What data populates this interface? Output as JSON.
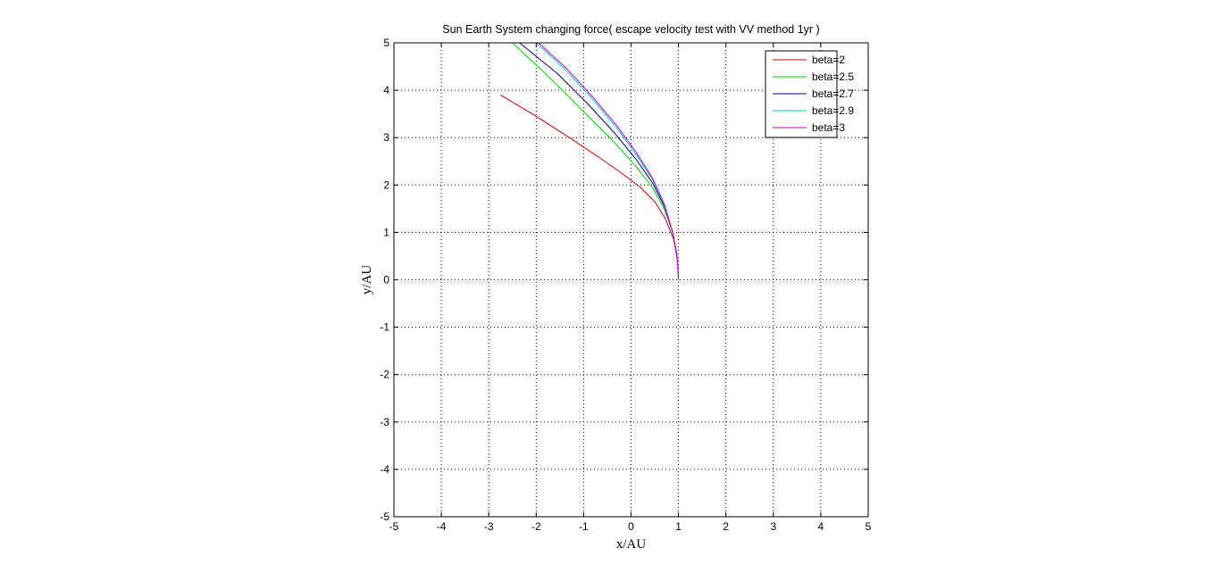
{
  "chart_data": {
    "type": "line",
    "title": "Sun Earth System changing force( escape velocity test with VV method 1yr )",
    "xlabel": "x/AU",
    "ylabel": "y/AU",
    "xlim": [
      -5,
      5
    ],
    "ylim": [
      -5,
      5
    ],
    "xticks": [
      -5,
      -4,
      -3,
      -2,
      -1,
      0,
      1,
      2,
      3,
      4,
      5
    ],
    "yticks": [
      -5,
      -4,
      -3,
      -2,
      -1,
      0,
      1,
      2,
      3,
      4,
      5
    ],
    "grid": true,
    "legend_position": "top-right",
    "series": [
      {
        "name": "beta=2",
        "color": "#cc0000",
        "x": [
          1.0,
          0.98,
          0.9,
          0.72,
          0.5,
          0.2,
          -0.2,
          -0.7,
          -1.3,
          -2.0,
          -2.75
        ],
        "y": [
          0.0,
          0.4,
          0.85,
          1.3,
          1.65,
          1.95,
          2.25,
          2.6,
          3.0,
          3.45,
          3.9
        ]
      },
      {
        "name": "beta=2.5",
        "color": "#00cc00",
        "x": [
          1.0,
          0.97,
          0.88,
          0.7,
          0.45,
          0.1,
          -0.4,
          -1.0,
          -1.7,
          -2.5
        ],
        "y": [
          0.0,
          0.5,
          1.0,
          1.5,
          1.95,
          2.4,
          2.95,
          3.55,
          4.25,
          5.0
        ]
      },
      {
        "name": "beta=2.7",
        "color": "#000080",
        "x": [
          1.0,
          0.97,
          0.88,
          0.7,
          0.45,
          0.1,
          -0.35,
          -0.9,
          -1.55,
          -2.35
        ],
        "y": [
          0.0,
          0.5,
          1.0,
          1.55,
          2.05,
          2.55,
          3.1,
          3.7,
          4.35,
          5.0
        ]
      },
      {
        "name": "beta=2.9",
        "color": "#00cccc",
        "x": [
          1.0,
          0.97,
          0.88,
          0.7,
          0.45,
          0.1,
          -0.3,
          -0.8,
          -1.4,
          -2.0
        ],
        "y": [
          0.0,
          0.5,
          1.0,
          1.58,
          2.12,
          2.65,
          3.2,
          3.8,
          4.45,
          5.0
        ]
      },
      {
        "name": "beta=3",
        "color": "#cc00cc",
        "x": [
          1.0,
          0.97,
          0.88,
          0.7,
          0.45,
          0.1,
          -0.3,
          -0.8,
          -1.35,
          -1.95
        ],
        "y": [
          0.0,
          0.5,
          1.0,
          1.6,
          2.15,
          2.7,
          3.25,
          3.85,
          4.45,
          5.0
        ]
      }
    ]
  }
}
